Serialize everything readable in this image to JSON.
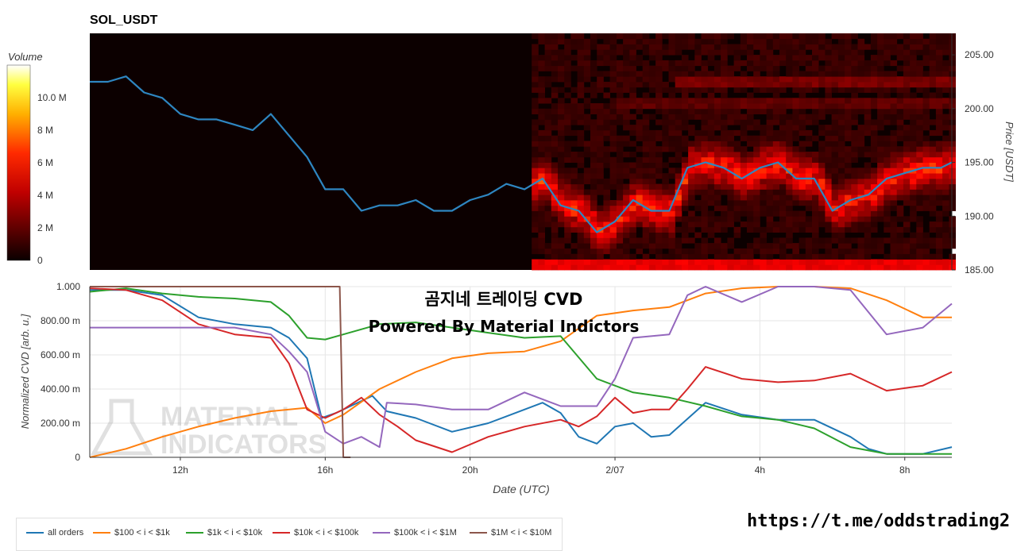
{
  "symbol": "SOL_USDT",
  "colorbar": {
    "label": "Volume",
    "ticks": [
      {
        "value": 0,
        "label": "0"
      },
      {
        "value": 2,
        "label": "2 M"
      },
      {
        "value": 4,
        "label": "4 M"
      },
      {
        "value": 6,
        "label": "6 M"
      },
      {
        "value": 8,
        "label": "8 M"
      },
      {
        "value": 10,
        "label": "10.0 M"
      }
    ],
    "max": 12
  },
  "watermark": {
    "line1": "MATERIAL",
    "line2": "INDICATORS"
  },
  "overlay": {
    "title": "곰지네 트레이딩 CVD",
    "subtitle": "Powered By Material Indictors"
  },
  "link": "https://t.me/oddstrading2",
  "colors": {
    "blue": "#1f77b4",
    "orange": "#ff7f0e",
    "green": "#2ca02c",
    "red": "#d62728",
    "purple": "#9467bd",
    "brown": "#8c564b"
  },
  "chart_data": [
    {
      "type": "line",
      "title": "SOL_USDT",
      "ylabel": "Price [USDT]",
      "x_unit": "hours since 09:30 UTC",
      "xlim": [
        0,
        23.8
      ],
      "ylim": [
        185.0,
        207.0
      ],
      "yticks": [
        "185.00",
        "190.00",
        "195.00",
        "200.00",
        "205.00"
      ],
      "heatmap_start_hour": 12.2,
      "series": [
        {
          "name": "Price",
          "color": "#1f77b4",
          "x": [
            0,
            0.5,
            1,
            1.5,
            2,
            2.5,
            3,
            3.5,
            4,
            4.5,
            5,
            5.5,
            6,
            6.5,
            7,
            7.5,
            8,
            8.5,
            9,
            9.5,
            10,
            10.5,
            11,
            11.5,
            12,
            12.5,
            13,
            13.5,
            14,
            14.5,
            15,
            15.5,
            16,
            16.5,
            17,
            17.5,
            18,
            18.5,
            19,
            19.5,
            20,
            20.5,
            21,
            21.5,
            22,
            22.5,
            23,
            23.5,
            23.8
          ],
          "y": [
            202.5,
            202.5,
            203,
            201.5,
            201,
            199.5,
            199,
            199,
            198.5,
            198,
            199.5,
            197.5,
            195.5,
            192.5,
            192.5,
            190.5,
            191,
            191,
            191.5,
            190.5,
            190.5,
            191.5,
            192,
            193,
            192.5,
            193.5,
            191,
            190.5,
            188.5,
            189.5,
            191.5,
            190.5,
            190.5,
            194.5,
            195,
            194.5,
            193.5,
            194.5,
            195,
            193.5,
            193.5,
            190.5,
            191.5,
            192,
            193.5,
            194,
            194.5,
            194.5,
            195
          ]
        }
      ]
    },
    {
      "type": "line",
      "xlabel": "Date (UTC)",
      "ylabel": "Normalized CVD [arb. u.]",
      "x_unit": "hours since 09:30 UTC",
      "xlim": [
        0,
        23.8
      ],
      "ylim": [
        0,
        1000
      ],
      "yticks": [
        "0",
        "200.00 m",
        "400.00 m",
        "600.00 m",
        "800.00 m",
        "1.000"
      ],
      "xticks": [
        {
          "value": 2.5,
          "label": "12h"
        },
        {
          "value": 6.5,
          "label": "16h"
        },
        {
          "value": 10.5,
          "label": "20h"
        },
        {
          "value": 14.5,
          "label": "2/07"
        },
        {
          "value": 18.5,
          "label": "4h"
        },
        {
          "value": 22.5,
          "label": "8h"
        }
      ],
      "series": [
        {
          "name": "all orders",
          "color": "#1f77b4",
          "x": [
            0,
            1,
            2,
            3,
            4,
            5,
            5.5,
            6,
            6.4,
            6.8,
            7.2,
            7.8,
            8.2,
            9,
            10,
            11,
            12,
            12.5,
            13,
            13.5,
            14,
            14.5,
            15,
            15.5,
            16,
            17,
            18,
            19,
            20,
            21,
            21.5,
            22,
            23,
            23.8
          ],
          "y": [
            980,
            980,
            950,
            820,
            780,
            760,
            700,
            580,
            230,
            260,
            300,
            360,
            270,
            230,
            150,
            200,
            280,
            320,
            260,
            120,
            80,
            180,
            200,
            120,
            130,
            320,
            250,
            220,
            220,
            120,
            50,
            20,
            20,
            60
          ]
        },
        {
          "name": "$100 < i < $1k",
          "color": "#ff7f0e",
          "x": [
            0,
            1,
            2,
            3,
            4,
            5,
            6,
            6.5,
            7,
            8,
            9,
            10,
            11,
            12,
            13,
            14,
            15,
            16,
            17,
            18,
            19,
            20,
            21,
            22,
            23,
            23.8
          ],
          "y": [
            0,
            50,
            120,
            180,
            230,
            270,
            290,
            200,
            250,
            400,
            500,
            580,
            610,
            620,
            680,
            830,
            860,
            880,
            960,
            990,
            1000,
            1000,
            990,
            920,
            820,
            820
          ]
        },
        {
          "name": "$1k < i < $10k",
          "color": "#2ca02c",
          "x": [
            0,
            1,
            2,
            3,
            4,
            5,
            5.5,
            6,
            6.5,
            7,
            8,
            9,
            10,
            11,
            12,
            13,
            14,
            15,
            16,
            17,
            18,
            19,
            20,
            21,
            21.5,
            22,
            23,
            23.8
          ],
          "y": [
            970,
            990,
            960,
            940,
            930,
            910,
            830,
            700,
            690,
            720,
            780,
            790,
            760,
            730,
            700,
            710,
            460,
            380,
            350,
            300,
            240,
            220,
            170,
            60,
            40,
            20,
            20,
            20
          ]
        },
        {
          "name": "$10k < i < $100k",
          "color": "#d62728",
          "x": [
            0,
            1,
            2,
            3,
            4,
            5,
            5.5,
            6,
            6.5,
            7,
            7.5,
            8,
            8.5,
            9,
            10,
            11,
            12,
            13,
            13.5,
            14,
            14.5,
            15,
            15.5,
            16,
            16.5,
            17,
            18,
            19,
            20,
            21,
            22,
            23,
            23.8
          ],
          "y": [
            990,
            980,
            920,
            780,
            720,
            700,
            550,
            280,
            230,
            280,
            350,
            250,
            180,
            100,
            30,
            120,
            180,
            220,
            180,
            240,
            350,
            260,
            280,
            280,
            400,
            530,
            460,
            440,
            450,
            490,
            390,
            420,
            500
          ]
        },
        {
          "name": "$100k < i < $1M",
          "color": "#9467bd",
          "x": [
            0,
            2,
            4,
            5,
            5.5,
            6,
            6.5,
            7,
            7.5,
            8,
            8.2,
            9,
            10,
            11,
            12,
            13,
            14,
            14.5,
            15,
            16,
            16.5,
            17,
            18,
            19,
            20,
            21,
            22,
            23,
            23.8
          ],
          "y": [
            760,
            760,
            760,
            720,
            620,
            500,
            150,
            80,
            120,
            60,
            320,
            310,
            280,
            280,
            380,
            300,
            300,
            460,
            700,
            720,
            950,
            1000,
            910,
            1000,
            1000,
            980,
            720,
            760,
            900
          ]
        },
        {
          "name": "$1M < i < $10M",
          "color": "#8c564b",
          "x": [
            0,
            6.9,
            7.0,
            7.2
          ],
          "y": [
            1000,
            1000,
            0,
            0
          ]
        }
      ]
    }
  ]
}
